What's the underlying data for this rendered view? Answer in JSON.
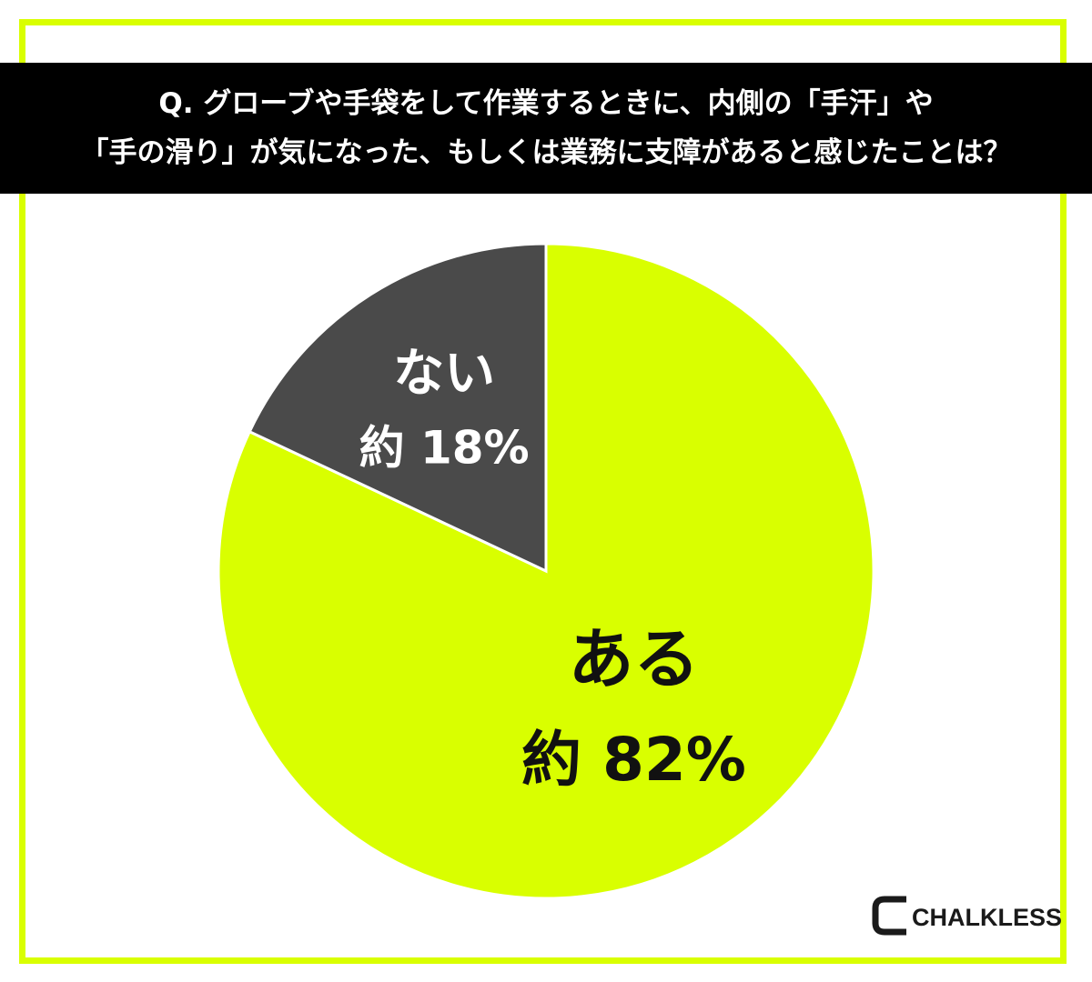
{
  "title": {
    "line1": "Q. グローブや手袋をして作業するときに、内側の「手汗」や",
    "line2": "「手の滑り」が気になった、もしくは業務に支障があると感じたことは？"
  },
  "chart_data": {
    "type": "pie",
    "start_angle": "12 o'clock, clockwise",
    "slices": [
      {
        "name": "ある",
        "value": 82,
        "label": "約 82%",
        "color": "#d9ff00",
        "label_color": "#111111"
      },
      {
        "name": "ない",
        "value": 18,
        "label": "約 18%",
        "color": "#4a4a4a",
        "label_color": "#ffffff"
      }
    ]
  },
  "logo": {
    "text": "CHALKLESS",
    "icon": "chalkless-c-logo-icon"
  },
  "colors": {
    "accent": "#d9ff00",
    "dark": "#4a4a4a",
    "title_bg": "#000000"
  }
}
